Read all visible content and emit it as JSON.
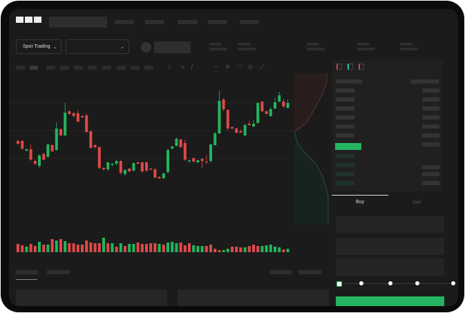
{
  "header": {
    "logo": "OKX"
  },
  "market": {
    "spot_trading_label": "Spot Trading",
    "dropdown_value": ""
  },
  "trade": {
    "buy_tab": "Buy",
    "sell_tab": "Sell",
    "leverage_steps": [
      0,
      25,
      50,
      75,
      100
    ],
    "leverage_selected": 0
  },
  "colors": {
    "up": "#22b55e",
    "down": "#e04848",
    "background": "#1b1b1b",
    "buy_button": "#25b560"
  },
  "chart_data": {
    "type": "candlestick",
    "candles": [
      [
        97,
        99,
        91,
        93
      ],
      [
        97,
        98,
        84,
        86
      ],
      [
        83,
        86,
        82,
        85
      ],
      [
        85,
        92,
        68,
        70
      ],
      [
        68,
        70,
        62,
        64
      ],
      [
        61,
        78,
        58,
        76
      ],
      [
        78,
        80,
        69,
        70
      ],
      [
        74,
        94,
        73,
        92
      ],
      [
        91,
        92,
        81,
        82
      ],
      [
        84,
        124,
        83,
        115
      ],
      [
        114,
        115,
        104,
        105
      ],
      [
        105,
        152,
        104,
        138
      ],
      [
        140,
        141,
        135,
        136
      ],
      [
        137,
        139,
        131,
        133
      ],
      [
        137,
        142,
        124,
        125
      ],
      [
        133,
        134,
        131,
        131
      ],
      [
        134,
        137,
        109,
        110
      ],
      [
        111,
        112,
        86,
        87
      ],
      [
        91,
        92,
        86,
        88
      ],
      [
        88,
        89,
        56,
        58
      ],
      [
        58,
        59,
        54,
        56
      ],
      [
        56,
        67,
        53,
        66
      ],
      [
        63,
        65,
        60,
        64
      ],
      [
        64,
        70,
        62,
        68
      ],
      [
        68,
        69,
        48,
        51
      ],
      [
        49,
        56,
        47,
        55
      ],
      [
        57,
        58,
        52,
        53
      ],
      [
        54,
        66,
        53,
        65
      ],
      [
        66,
        67,
        63,
        64
      ],
      [
        66,
        67,
        51,
        53
      ],
      [
        66,
        67,
        52,
        54
      ],
      [
        57,
        58,
        55,
        56
      ],
      [
        56,
        58,
        43,
        44
      ],
      [
        45,
        46,
        42,
        43
      ],
      [
        43,
        51,
        42,
        50
      ],
      [
        52,
        86,
        50,
        84
      ],
      [
        86,
        90,
        85,
        89
      ],
      [
        90,
        102,
        89,
        100
      ],
      [
        99,
        100,
        87,
        88
      ],
      [
        94,
        99,
        68,
        70
      ],
      [
        68,
        70,
        65,
        69
      ],
      [
        72,
        73,
        67,
        67
      ],
      [
        66,
        70,
        65,
        69
      ],
      [
        71,
        72,
        58,
        68
      ],
      [
        67,
        76,
        66,
        66
      ],
      [
        68,
        93,
        66,
        92
      ],
      [
        91,
        110,
        90,
        108
      ],
      [
        108,
        170,
        107,
        155
      ],
      [
        157,
        159,
        140,
        143
      ],
      [
        142,
        143,
        112,
        115
      ],
      [
        117,
        118,
        114,
        115
      ],
      [
        115,
        116,
        108,
        109
      ],
      [
        111,
        114,
        109,
        109
      ],
      [
        105,
        122,
        104,
        120
      ],
      [
        122,
        126,
        119,
        120
      ],
      [
        118,
        127,
        117,
        122
      ],
      [
        123,
        153,
        122,
        152
      ],
      [
        154,
        155,
        139,
        140
      ],
      [
        140,
        141,
        136,
        136
      ],
      [
        133,
        146,
        132,
        143
      ],
      [
        144,
        160,
        143,
        153
      ],
      [
        154,
        168,
        153,
        163
      ],
      [
        154,
        158,
        145,
        147
      ],
      [
        145,
        157,
        144,
        152
      ]
    ],
    "volume": [
      12,
      10,
      8,
      12,
      9,
      15,
      11,
      11,
      19,
      17,
      19,
      16,
      13,
      13,
      11,
      11,
      17,
      14,
      13,
      13,
      21,
      13,
      13,
      8,
      13,
      9,
      12,
      12,
      14,
      12,
      12,
      13,
      13,
      12,
      11,
      14,
      15,
      13,
      14,
      10,
      13,
      10,
      9,
      9,
      9,
      11,
      5,
      3,
      3,
      5,
      8,
      8,
      7,
      7,
      9,
      11,
      9,
      9,
      10,
      11,
      8,
      7,
      4,
      5
    ],
    "volume_up": [
      0,
      0,
      1,
      0,
      0,
      1,
      0,
      1,
      0,
      1,
      0,
      1,
      0,
      0,
      0,
      0,
      0,
      0,
      0,
      0,
      1,
      0,
      1,
      0,
      1,
      0,
      1,
      1,
      0,
      0,
      0,
      0,
      0,
      1,
      0,
      1,
      1,
      1,
      0,
      0,
      0,
      1,
      1,
      1,
      0,
      0,
      0,
      0,
      1,
      1,
      0,
      0,
      0,
      1,
      0,
      0,
      0,
      1,
      1,
      1,
      1,
      1,
      0,
      1
    ],
    "grid": true
  }
}
